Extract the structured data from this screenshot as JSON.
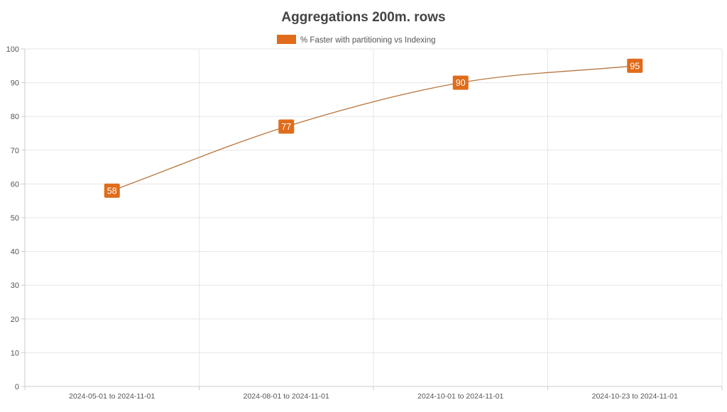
{
  "chart_data": {
    "type": "line",
    "title": "Aggregations 200m. rows",
    "legend_position": "top",
    "categories": [
      "2024-05-01 to 2024-11-01",
      "2024-08-01 to 2024-11-01",
      "2024-10-01 to 2024-11-01",
      "2024-10-23 to 2024-11-01"
    ],
    "series": [
      {
        "name": "% Faster with partitioning vs Indexing",
        "values": [
          58,
          77,
          90,
          95
        ],
        "color": "#e06c1b",
        "line_color": "#b8763e",
        "smooth": true,
        "data_labels": true
      }
    ],
    "ylim": [
      0,
      100
    ],
    "yticks": [
      0,
      10,
      20,
      30,
      40,
      50,
      60,
      70,
      80,
      90,
      100
    ],
    "grid": true
  }
}
